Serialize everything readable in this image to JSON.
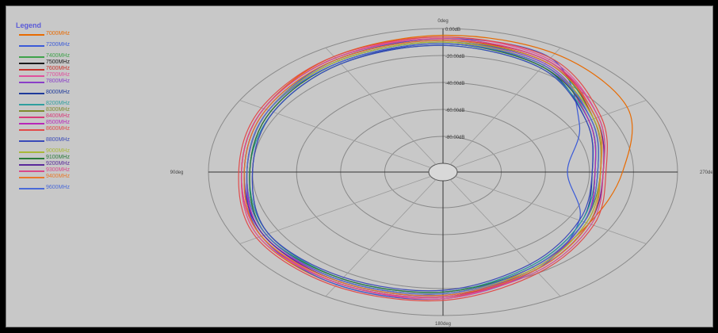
{
  "legend_title": "Legend",
  "chart_data": {
    "type": "polar-line",
    "angle_labels": {
      "top": "0deg",
      "left": "90deg",
      "bottom": "180deg",
      "right": "270deg"
    },
    "radial_scale": "dB",
    "rings": [
      "0.00dB",
      "-20.00dB",
      "-40.00dB",
      "-60.00dB",
      "-80.00dB"
    ],
    "angles_deg": [
      0,
      30,
      60,
      90,
      120,
      150,
      180,
      210,
      240,
      270,
      300,
      330
    ],
    "series": [
      {
        "name": "7000MHz",
        "color": "#e86a00",
        "values": [
          -4,
          -4,
          -8,
          -20,
          -24,
          -20,
          -10,
          -8,
          -8,
          -12,
          -10,
          -6
        ]
      },
      {
        "name": "7200MHz",
        "color": "#3a5ad8",
        "values": [
          -6,
          -7,
          -28,
          -40,
          -28,
          -18,
          -10,
          -8,
          -9,
          -14,
          -12,
          -8
        ]
      },
      {
        "name": "7400MHz",
        "color": "#3ea24a",
        "values": [
          -8,
          -10,
          -22,
          -28,
          -24,
          -18,
          -12,
          -10,
          -10,
          -14,
          -12,
          -9
        ]
      },
      {
        "name": "7500MHz",
        "color": "#1a1a1a",
        "values": [
          -9,
          -12,
          -24,
          -30,
          -26,
          -20,
          -13,
          -11,
          -11,
          -15,
          -13,
          -10
        ]
      },
      {
        "name": "7600MHz",
        "color": "#c8322a",
        "values": [
          -7,
          -9,
          -22,
          -28,
          -25,
          -19,
          -11,
          -9,
          -9,
          -13,
          -11,
          -8
        ]
      },
      {
        "name": "7700MHz",
        "color": "#e0509c",
        "values": [
          -5,
          -8,
          -20,
          -27,
          -24,
          -18,
          -10,
          -9,
          -8,
          -12,
          -10,
          -7
        ]
      },
      {
        "name": "7800MHz",
        "color": "#8a3ec8",
        "values": [
          -8,
          -11,
          -23,
          -29,
          -26,
          -19,
          -12,
          -10,
          -10,
          -14,
          -12,
          -9
        ]
      },
      {
        "name": "8000MHz",
        "color": "#1e3a9a",
        "values": [
          -9,
          -13,
          -25,
          -31,
          -27,
          -21,
          -14,
          -12,
          -12,
          -16,
          -14,
          -11
        ]
      },
      {
        "name": "8200MHz",
        "color": "#2e9e9e",
        "values": [
          -10,
          -14,
          -24,
          -30,
          -27,
          -21,
          -14,
          -12,
          -12,
          -15,
          -14,
          -11
        ]
      },
      {
        "name": "8300MHz",
        "color": "#7e8a2e",
        "values": [
          -8,
          -12,
          -22,
          -28,
          -26,
          -20,
          -13,
          -11,
          -11,
          -14,
          -12,
          -9
        ]
      },
      {
        "name": "8400MHz",
        "color": "#d83a78",
        "values": [
          -6,
          -9,
          -21,
          -27,
          -24,
          -18,
          -11,
          -9,
          -9,
          -12,
          -10,
          -7
        ]
      },
      {
        "name": "8500MHz",
        "color": "#b828b8",
        "values": [
          -9,
          -12,
          -24,
          -30,
          -26,
          -20,
          -13,
          -11,
          -10,
          -14,
          -12,
          -10
        ]
      },
      {
        "name": "8600MHz",
        "color": "#e24a4a",
        "values": [
          -5,
          -7,
          -19,
          -26,
          -22,
          -16,
          -9,
          -7,
          -7,
          -11,
          -9,
          -6
        ]
      },
      {
        "name": "8800MHz",
        "color": "#3a4ab8",
        "values": [
          -10,
          -14,
          -25,
          -31,
          -28,
          -22,
          -15,
          -13,
          -12,
          -16,
          -14,
          -11
        ]
      },
      {
        "name": "9000MHz",
        "color": "#a8b838",
        "values": [
          -8,
          -12,
          -22,
          -28,
          -25,
          -19,
          -13,
          -11,
          -11,
          -14,
          -12,
          -9
        ]
      },
      {
        "name": "9100MHz",
        "color": "#2a7a3a",
        "values": [
          -9,
          -13,
          -23,
          -29,
          -26,
          -20,
          -14,
          -12,
          -11,
          -15,
          -13,
          -10
        ]
      },
      {
        "name": "9200MHz",
        "color": "#5a2a9a",
        "values": [
          -7,
          -10,
          -21,
          -27,
          -24,
          -18,
          -12,
          -10,
          -10,
          -13,
          -11,
          -8
        ]
      },
      {
        "name": "9300MHz",
        "color": "#d8488a",
        "values": [
          -6,
          -9,
          -20,
          -27,
          -23,
          -17,
          -11,
          -9,
          -9,
          -12,
          -10,
          -7
        ]
      },
      {
        "name": "9400MHz",
        "color": "#e8782a",
        "values": [
          -7,
          -10,
          -21,
          -28,
          -24,
          -18,
          -12,
          -10,
          -9,
          -13,
          -11,
          -8
        ]
      },
      {
        "name": "9600MHz",
        "color": "#4a6ad8",
        "values": [
          -9,
          -12,
          -23,
          -29,
          -26,
          -20,
          -13,
          -11,
          -11,
          -14,
          -12,
          -10
        ]
      }
    ]
  }
}
